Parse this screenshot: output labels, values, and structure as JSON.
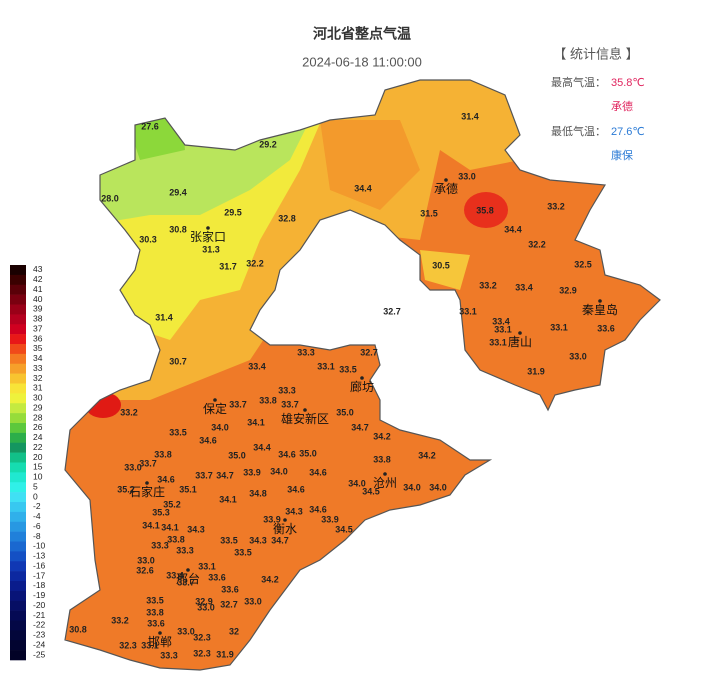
{
  "header": {
    "title": "河北省整点气温",
    "time": "2024-06-18 11:00:00"
  },
  "stats": {
    "heading": "【 统计信息 】",
    "max_label": "最高气温：",
    "max_value": "35.8℃",
    "max_station": "承德",
    "min_label": "最低气温：",
    "min_value": "27.6℃",
    "min_station": "康保"
  },
  "legend": [
    "43",
    "42",
    "41",
    "40",
    "39",
    "38",
    "37",
    "36",
    "35",
    "34",
    "33",
    "32",
    "31",
    "30",
    "29",
    "28",
    "26",
    "24",
    "22",
    "20",
    "15",
    "10",
    "5",
    "0",
    "-2",
    "-4",
    "-6",
    "-8",
    "-10",
    "-13",
    "-16",
    "-17",
    "-18",
    "-19",
    "-20",
    "-21",
    "-22",
    "-23",
    "-24",
    "-25"
  ],
  "cities": [
    "张家口",
    "承德",
    "秦皇岛",
    "唐山",
    "廊坊",
    "保定",
    "雄安新区",
    "沧州",
    "石家庄",
    "衡水",
    "邢台",
    "邯郸"
  ],
  "stations": [
    "27.6",
    "29.2",
    "29.4",
    "28.0",
    "29.5",
    "30.3",
    "30.8",
    "31.3",
    "31.7",
    "32.2",
    "32.8",
    "34.4",
    "31.4",
    "33.0",
    "31.5",
    "35.8",
    "33.2",
    "34.4",
    "32.2",
    "30.5",
    "32.5",
    "33.2",
    "33.4",
    "32.9",
    "31.4",
    "32.7",
    "33.1",
    "33.4",
    "33.1",
    "33.1",
    "33.6",
    "33.1",
    "33.0",
    "31.9",
    "30.7",
    "33.4",
    "33.3",
    "33.1",
    "33.5",
    "32.7",
    "33.2",
    "33.7",
    "33.8",
    "33.3",
    "33.7",
    "35.0",
    "34.7",
    "34.1",
    "33.5",
    "34.6",
    "34.0",
    "34.2",
    "34.2",
    "33.8",
    "33.8",
    "35.0",
    "34.4",
    "34.6",
    "35.0",
    "33.0",
    "33.7",
    "34.6",
    "33.7",
    "34.7",
    "33.9",
    "34.0",
    "34.6",
    "34.0",
    "34.5",
    "34.0",
    "34.0",
    "35.2",
    "35.1",
    "34.1",
    "34.8",
    "34.6",
    "35.2",
    "35.3",
    "34.1",
    "34.1",
    "34.3",
    "33.9",
    "34.3",
    "34.6",
    "33.9",
    "34.5",
    "33.8",
    "33.3",
    "33.3",
    "33.5",
    "34.3",
    "34.7",
    "33.5",
    "33.0",
    "33.1",
    "32.6",
    "33.4",
    "33.7",
    "33.6",
    "33.6",
    "34.2",
    "33.5",
    "32.9",
    "33.0",
    "33.8",
    "33.0",
    "32.7",
    "33.2",
    "33.6",
    "32",
    "30.8",
    "33.0",
    "32.3",
    "32.3",
    "33.1",
    "33.3",
    "32.3",
    "31.9"
  ]
}
